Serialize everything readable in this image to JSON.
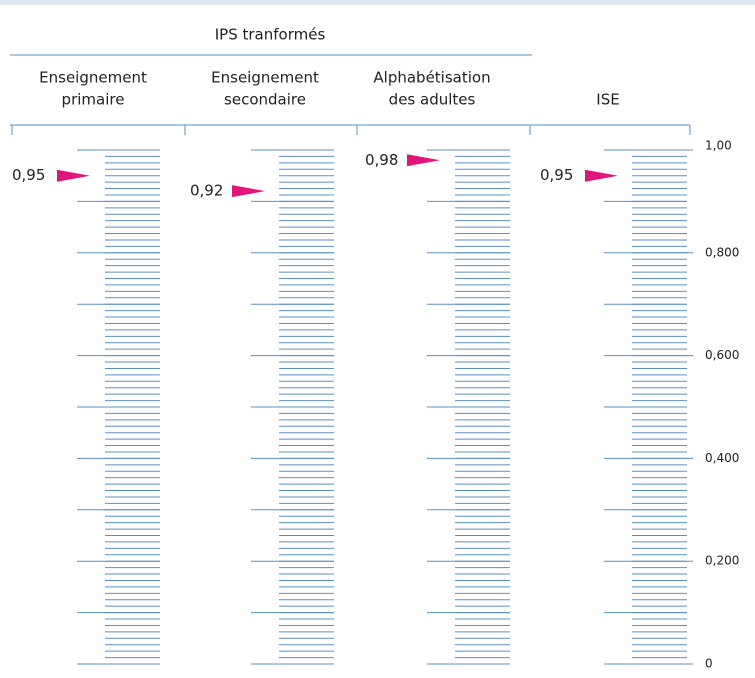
{
  "chart_data": {
    "type": "scale",
    "title": "IPS tranformés",
    "categories": [
      [
        "Enseignement",
        "primaire"
      ],
      [
        "Enseignement",
        "secondaire"
      ],
      [
        "Alphabétisation",
        "des adultes"
      ],
      [
        "ISE"
      ]
    ],
    "values": [
      0.95,
      0.92,
      0.98,
      0.95
    ],
    "value_labels": [
      "0,95",
      "0,92",
      "0,98",
      "0,95"
    ],
    "color": "#e2157a",
    "line_color": "#5b8fc4",
    "ylim": [
      0,
      1
    ],
    "yticks": [
      {
        "value": 1,
        "label": "1,00"
      },
      {
        "value": 0.8,
        "label": "0,800"
      },
      {
        "value": 0.6,
        "label": "0,600"
      },
      {
        "value": 0.4,
        "label": "0,400"
      },
      {
        "value": 0.2,
        "label": "0,200"
      },
      0
    ]
  }
}
